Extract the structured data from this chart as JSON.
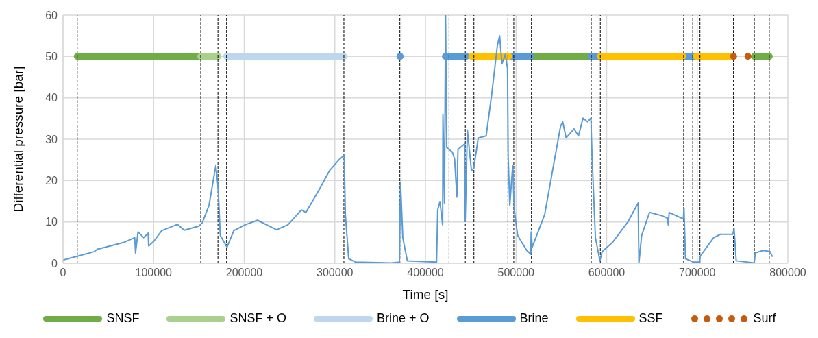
{
  "chart_data": {
    "type": "line",
    "xlabel": "Time [s]",
    "ylabel": "Differential pressure [bar]",
    "xlim": [
      0,
      800000
    ],
    "xticks": [
      0,
      100000,
      200000,
      300000,
      400000,
      500000,
      600000,
      700000,
      800000
    ],
    "ylim": [
      0,
      60
    ],
    "yticks": [
      0,
      10,
      20,
      30,
      40,
      50,
      60
    ],
    "grid": true,
    "legend": "bottom",
    "series": [
      {
        "name": "SNSF",
        "color": "#70ad47",
        "x": [
          15700,
          152000,
          152500,
          517000,
          583000,
          583500,
          763000,
          779500
        ],
        "values": [
          50,
          50,
          null,
          50,
          50,
          null,
          50,
          50
        ]
      },
      {
        "name": "SNSF + O",
        "color": "#a9d18e",
        "x": [
          152000,
          171000
        ],
        "values": [
          50,
          50
        ]
      },
      {
        "name": "Brine + O",
        "color": "#bdd7ee",
        "x": [
          180500,
          310000
        ],
        "values": [
          50,
          50
        ]
      },
      {
        "name": "Brine",
        "color": "#5b9bd5",
        "x": [
          372000,
          372500,
          422000,
          445000,
          445500,
          494600,
          516000,
          516500,
          583000,
          593000,
          593500,
          684000,
          698000
        ],
        "values": [
          50,
          null,
          50,
          50,
          null,
          50,
          50,
          null,
          50,
          50,
          null,
          50,
          50
        ]
      },
      {
        "name": "SSF",
        "color": "#ffc000",
        "x": [
          451000,
          492000,
          492500,
          593000,
          684000,
          684500,
          699000,
          740000
        ],
        "values": [
          50,
          50,
          null,
          50,
          50,
          null,
          50,
          50
        ]
      },
      {
        "name": "Surf",
        "type": "scatter",
        "marker": "circle",
        "color": "#c55a11",
        "x": [
          740000,
          756000
        ],
        "values": [
          50,
          50
        ]
      },
      {
        "color": "#5b9bd5",
        "x": [
          0,
          15700,
          34300,
          38000,
          66600,
          79100,
          80000,
          82800,
          89000,
          94000,
          94500,
          100200,
          108900,
          126300,
          133800,
          150000,
          153700,
          161100,
          168600,
          171100,
          173600,
          181000,
          188500,
          200900,
          214600,
          235700,
          248200,
          263100,
          268100,
          283000,
          294100,
          305400,
          310300,
          311600,
          315300,
          322800,
          362600,
          371300,
          372500,
          375000,
          380000,
          412300,
          413500,
          416000,
          419000,
          419300,
          421000,
          422200,
          423500,
          429700,
          432200,
          434700,
          435900,
          443400,
          443900,
          446300,
          450800,
          453300,
          458300,
          467000,
          473200,
          479400,
          481900,
          484400,
          488100,
          490600,
          491300,
          493100,
          496300,
          498100,
          501800,
          511800,
          516200,
          516700,
          517900,
          531600,
          549100,
          551500,
          555300,
          564000,
          568900,
          573900,
          578900,
          582600,
          583900,
          587600,
          592600,
          595000,
          606300,
          623700,
          634800,
          635600,
          638600,
          647300,
          661000,
          667200,
          668000,
          669000,
          684600,
          685400,
          687000,
          695800,
          702700,
          703200,
          718100,
          725600,
          739300,
          740600,
          743000,
          762900,
          764100,
          772900,
          780300,
          782700
        ],
        "values": [
          0.8,
          1.7,
          2.8,
          3.4,
          5.0,
          6.2,
          2.5,
          7.6,
          6.2,
          7.3,
          4.2,
          5.3,
          7.9,
          9.4,
          8.0,
          9.0,
          9.8,
          14.0,
          23.6,
          18.5,
          6.7,
          3.9,
          7.9,
          9.3,
          10.4,
          8.1,
          9.3,
          12.9,
          12.3,
          17.9,
          22.4,
          25.2,
          26.1,
          11.8,
          1.1,
          0.3,
          0.1,
          0.3,
          19.6,
          6.2,
          0.6,
          0.3,
          12.9,
          14.9,
          9.3,
          35.9,
          14.6,
          60,
          28.0,
          26.9,
          25.2,
          16.0,
          27.5,
          28.9,
          10.1,
          32.2,
          22.4,
          23.0,
          30.3,
          30.8,
          40.9,
          52.7,
          55.0,
          48.2,
          50.5,
          47.1,
          25.8,
          14.0,
          23.6,
          12.9,
          6.7,
          3.1,
          2.2,
          7.6,
          3.9,
          11.8,
          33.1,
          34.2,
          30.3,
          32.5,
          30.8,
          35.1,
          34.2,
          35.1,
          25.8,
          6.2,
          0.6,
          2.8,
          5.0,
          10.1,
          14.6,
          0,
          6.7,
          12.3,
          11.5,
          10.9,
          9.3,
          12.3,
          10.7,
          13.2,
          1.1,
          0.3,
          0.3,
          1.7,
          6.2,
          7.0,
          7.0,
          8.4,
          0.6,
          0.1,
          2.5,
          3.1,
          2.8,
          1.7
        ]
      }
    ],
    "ref_lines": [
      {
        "axis": "x",
        "value": 15700,
        "color": "#000000",
        "line_style": "dashed"
      },
      {
        "axis": "x",
        "value": 152000,
        "color": "#000000",
        "line_style": "dashed"
      },
      {
        "axis": "x",
        "value": 171000,
        "color": "#000000",
        "line_style": "dashed"
      },
      {
        "axis": "x",
        "value": 180500,
        "color": "#000000",
        "line_style": "dashed"
      },
      {
        "axis": "x",
        "value": 310000,
        "color": "#000000",
        "line_style": "dashed"
      },
      {
        "axis": "x",
        "value": 371500,
        "color": "#000000",
        "line_style": "dashed"
      },
      {
        "axis": "x",
        "value": 373000,
        "color": "#000000",
        "line_style": "dashed"
      },
      {
        "axis": "x",
        "value": 426000,
        "color": "#000000",
        "line_style": "dashed"
      },
      {
        "axis": "x",
        "value": 444000,
        "color": "#000000",
        "line_style": "dashed"
      },
      {
        "axis": "x",
        "value": 453500,
        "color": "#000000",
        "line_style": "dashed"
      },
      {
        "axis": "x",
        "value": 491000,
        "color": "#000000",
        "line_style": "dashed"
      },
      {
        "axis": "x",
        "value": 497500,
        "color": "#000000",
        "line_style": "dashed"
      },
      {
        "axis": "x",
        "value": 517000,
        "color": "#000000",
        "line_style": "dashed"
      },
      {
        "axis": "x",
        "value": 583000,
        "color": "#000000",
        "line_style": "dashed"
      },
      {
        "axis": "x",
        "value": 593000,
        "color": "#000000",
        "line_style": "dashed"
      },
      {
        "axis": "x",
        "value": 685000,
        "color": "#000000",
        "line_style": "dashed"
      },
      {
        "axis": "x",
        "value": 695000,
        "color": "#000000",
        "line_style": "dashed"
      },
      {
        "axis": "x",
        "value": 703000,
        "color": "#000000",
        "line_style": "dashed"
      },
      {
        "axis": "x",
        "value": 740000,
        "color": "#000000",
        "line_style": "dashed"
      },
      {
        "axis": "x",
        "value": 763000,
        "color": "#000000",
        "line_style": "dashed"
      },
      {
        "axis": "x",
        "value": 779500,
        "color": "#000000",
        "line_style": "dashed"
      }
    ]
  }
}
